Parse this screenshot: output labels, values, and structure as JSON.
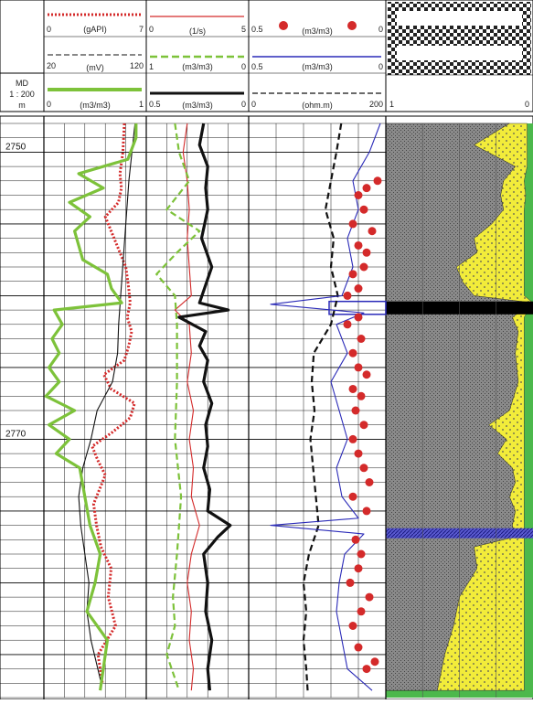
{
  "header": {
    "index": {
      "label_lines": [
        "MD",
        "1 : 200",
        "m"
      ]
    },
    "track1": {
      "gr": {
        "min": "0",
        "unit": "(gAPI)",
        "max": "7"
      },
      "sp": {
        "min": "20",
        "unit": "(mV)",
        "max": "120"
      },
      "phi": {
        "min": "0",
        "unit": "(m3/m3)",
        "max": "1"
      }
    },
    "track2": {
      "dt": {
        "min": "0",
        "unit": "(1/s)",
        "max": "5"
      },
      "nphi": {
        "min": "1",
        "unit": "(m3/m3)",
        "max": "0"
      },
      "rhob": {
        "min": "0.5",
        "unit": "(m3/m3)",
        "max": "0"
      }
    },
    "track3": {
      "core": {
        "min": "0.5",
        "unit": "(m3/m3)",
        "max": "0"
      },
      "phie": {
        "min": "0.5",
        "unit": "(m3/m3)",
        "max": "0"
      },
      "res": {
        "min": "0",
        "unit": "(ohm.m)",
        "max": "200"
      }
    },
    "track4": {
      "min": "1",
      "max": "0"
    }
  },
  "depth_labels": [
    "2750",
    "2770"
  ],
  "colors": {
    "gr": "#d42a2a",
    "sp": "#111111",
    "phi": "#7dc23a",
    "dt": "#d42a2a",
    "nphi": "#7dc23a",
    "rhob": "#111111",
    "core": "#d42a2a",
    "phie": "#2a2ab8",
    "res": "#111111",
    "shale": "#8a8a8a",
    "sand": "#f2ec3a",
    "water": "#4cb84c",
    "coal": "#000000"
  },
  "chart_data": {
    "type": "line",
    "depth_unit": "m",
    "depth_range": [
      2748,
      2788
    ],
    "depth_ticks": [
      2750,
      2770
    ],
    "tracks": [
      {
        "name": "track1",
        "series": [
          {
            "name": "(gAPI)",
            "xlim": [
              0,
              7
            ],
            "style": "dotted",
            "depth": [
              2748,
              2750,
              2751.5,
              2752.5,
              2753.5,
              2754.5,
              2756,
              2758,
              2759.5,
              2760.5,
              2761.5,
              2762.5,
              2763.5,
              2764.5,
              2765.5,
              2766.5,
              2767.5,
              2768.5,
              2769.5,
              2770.5,
              2771.5,
              2772.5,
              2773.5,
              2774.5,
              2776,
              2777.5,
              2779,
              2781,
              2783,
              2785,
              2787
            ],
            "values": [
              5.5,
              5.4,
              5.2,
              5.3,
              5.1,
              4.2,
              4.8,
              5.6,
              5.8,
              5.9,
              5.7,
              6.0,
              5.8,
              5.5,
              4.1,
              4.6,
              6.2,
              5.9,
              4.7,
              3.3,
              3.7,
              4.2,
              3.8,
              3.4,
              3.6,
              3.9,
              4.6,
              4.4,
              4.9,
              3.7,
              4.0
            ]
          },
          {
            "name": "(mV)",
            "xlim": [
              20,
              120
            ],
            "style": "solid",
            "depth": [
              2748,
              2752,
              2756,
              2760,
              2762,
              2764,
              2766,
              2768,
              2770,
              2772,
              2774,
              2776,
              2778,
              2780,
              2782,
              2784,
              2787
            ],
            "values": [
              109,
              103,
              99,
              95,
              93,
              92,
              87,
              72,
              66,
              58,
              54,
              56,
              60,
              64,
              62,
              66,
              76
            ]
          },
          {
            "name": "(m3/m3)",
            "xlim": [
              0,
              1
            ],
            "style": "thick",
            "depth": [
              2748,
              2749,
              2750.5,
              2751.5,
              2752.5,
              2753.5,
              2754.5,
              2755.5,
              2756.5,
              2757.5,
              2758.5,
              2759.5,
              2760.5,
              2761,
              2762,
              2763,
              2764,
              2765,
              2766,
              2767,
              2768,
              2769,
              2770,
              2771,
              2772,
              2774,
              2776,
              2778,
              2780,
              2782,
              2784,
              2786,
              2787.5
            ],
            "values": [
              0.9,
              0.9,
              0.82,
              0.34,
              0.58,
              0.25,
              0.45,
              0.3,
              0.34,
              0.38,
              0.62,
              0.66,
              0.76,
              0.1,
              0.18,
              0.08,
              0.15,
              0.05,
              0.15,
              0.02,
              0.3,
              0.05,
              0.25,
              0.12,
              0.35,
              0.4,
              0.45,
              0.55,
              0.5,
              0.42,
              0.62,
              0.58,
              0.55
            ]
          }
        ]
      },
      {
        "name": "track2",
        "series": [
          {
            "name": "(1/s)",
            "xlim": [
              0,
              5
            ],
            "style": "solid",
            "depth": [
              2748,
              2750,
              2752,
              2754,
              2756,
              2758,
              2760,
              2761,
              2762,
              2764,
              2766,
              2768,
              2770,
              2772,
              2774,
              2776,
              2778,
              2780,
              2782,
              2784,
              2786,
              2787.5
            ],
            "values": [
              2.0,
              1.8,
              2.0,
              2.1,
              2.0,
              2.1,
              2.2,
              1.4,
              2.1,
              2.2,
              2.0,
              2.3,
              2.1,
              2.3,
              2.2,
              2.6,
              2.2,
              2.0,
              2.2,
              2.1,
              2.3,
              2.2
            ]
          },
          {
            "name": "(m3/m3)",
            "xlim": [
              1,
              0
            ],
            "style": "dashed",
            "depth": [
              2748,
              2750,
              2752,
              2754,
              2755.5,
              2757,
              2758.5,
              2760,
              2762,
              2766,
              2770,
              2774,
              2778,
              2781,
              2783,
              2785,
              2787.5
            ],
            "values": [
              0.72,
              0.68,
              0.58,
              0.8,
              0.48,
              0.7,
              0.9,
              0.72,
              0.7,
              0.7,
              0.72,
              0.66,
              0.7,
              0.74,
              0.72,
              0.8,
              0.68
            ]
          },
          {
            "name": "(m3/m3)",
            "xlim": [
              0.5,
              0
            ],
            "style": "thick",
            "depth": [
              2748,
              2749.5,
              2751,
              2752.5,
              2754,
              2756,
              2758,
              2760.5,
              2761,
              2761.5,
              2762.5,
              2763.5,
              2764.5,
              2766,
              2767.5,
              2769,
              2770.5,
              2772,
              2773.5,
              2775,
              2776,
              2776.8,
              2778,
              2780,
              2782,
              2784,
              2786,
              2787.5
            ],
            "values": [
              0.22,
              0.24,
              0.2,
              0.21,
              0.2,
              0.23,
              0.18,
              0.24,
              0.1,
              0.34,
              0.21,
              0.24,
              0.2,
              0.22,
              0.18,
              0.21,
              0.2,
              0.22,
              0.19,
              0.2,
              0.09,
              0.15,
              0.22,
              0.2,
              0.21,
              0.18,
              0.2,
              0.19
            ]
          }
        ]
      },
      {
        "name": "track3",
        "series": [
          {
            "name": "(ohm.m)",
            "xlim": [
              0,
              200
            ],
            "style": "dashed",
            "depth": [
              2748,
              2750,
              2752,
              2754,
              2756,
              2758,
              2760,
              2762,
              2764,
              2766,
              2768,
              2770,
              2772,
              2774,
              2776,
              2778,
              2780,
              2782,
              2784,
              2786,
              2787.5
            ],
            "values": [
              135,
              128,
              120,
              112,
              124,
              120,
              130,
              120,
              95,
              92,
              96,
              90,
              94,
              98,
              102,
              88,
              80,
              84,
              80,
              84,
              86
            ]
          },
          {
            "name": "(m3/m3)",
            "xlim": [
              0.5,
              0
            ],
            "style": "solid",
            "depth": [
              2748,
              2750,
              2752,
              2754,
              2756,
              2758,
              2760,
              2760.6,
              2761.2,
              2762,
              2764,
              2766,
              2768,
              2770,
              2772,
              2774,
              2775.5,
              2776,
              2776.6,
              2778,
              2780,
              2782,
              2784,
              2786,
              2787.5
            ],
            "values": [
              0.02,
              0.06,
              0.12,
              0.1,
              0.14,
              0.12,
              0.16,
              0.42,
              0.08,
              0.18,
              0.14,
              0.2,
              0.17,
              0.14,
              0.18,
              0.16,
              0.1,
              0.42,
              0.08,
              0.15,
              0.17,
              0.18,
              0.16,
              0.14,
              0.05
            ]
          },
          {
            "name": "(m3/m3)",
            "xlim": [
              0.5,
              0
            ],
            "style": "markers",
            "depth": [
              2752,
              2752.5,
              2753,
              2754,
              2755,
              2755.5,
              2756.5,
              2757,
              2758,
              2758.5,
              2759.5,
              2760,
              2761.5,
              2762,
              2763,
              2764,
              2765,
              2765.5,
              2766.5,
              2767,
              2768,
              2769,
              2770,
              2771,
              2772,
              2773,
              2774,
              2775,
              2777,
              2778,
              2779,
              2780,
              2781,
              2782,
              2783,
              2784.5,
              2785.5,
              2786
            ],
            "values": [
              0.03,
              0.07,
              0.1,
              0.08,
              0.12,
              0.05,
              0.1,
              0.07,
              0.08,
              0.12,
              0.1,
              0.14,
              0.1,
              0.14,
              0.09,
              0.12,
              0.1,
              0.07,
              0.12,
              0.09,
              0.11,
              0.08,
              0.12,
              0.1,
              0.08,
              0.06,
              0.12,
              0.07,
              0.11,
              0.09,
              0.1,
              0.13,
              0.06,
              0.09,
              0.12,
              0.1,
              0.04,
              0.07
            ]
          }
        ]
      },
      {
        "name": "track4",
        "type": "area",
        "xlim": [
          1,
          0
        ],
        "components": [
          "shale",
          "sand",
          "water"
        ],
        "depth": [
          2748,
          2749.5,
          2751,
          2752,
          2753,
          2754,
          2755,
          2756,
          2757,
          2758,
          2759,
          2760,
          2760.5,
          2761.5,
          2762.5,
          2764,
          2766,
          2768,
          2769,
          2770,
          2771,
          2772,
          2773,
          2774,
          2775,
          2776,
          2776.8,
          2777.5,
          2779,
          2781,
          2783,
          2785,
          2787.5
        ],
        "shale": [
          0.84,
          0.6,
          0.88,
          0.8,
          0.78,
          0.8,
          0.72,
          0.6,
          0.62,
          0.48,
          0.52,
          0.6,
          1.0,
          0.86,
          0.9,
          0.88,
          0.9,
          0.84,
          0.7,
          0.82,
          0.76,
          0.86,
          0.88,
          0.84,
          0.88,
          0.86,
          0.88,
          0.6,
          0.62,
          0.5,
          0.46,
          0.4,
          0.35
        ],
        "sand": [
          0.12,
          0.36,
          0.08,
          0.14,
          0.17,
          0.14,
          0.22,
          0.34,
          0.32,
          0.46,
          0.42,
          0.34,
          0.0,
          0.08,
          0.04,
          0.06,
          0.04,
          0.1,
          0.24,
          0.12,
          0.18,
          0.08,
          0.06,
          0.1,
          0.06,
          0.08,
          0.06,
          0.34,
          0.32,
          0.44,
          0.48,
          0.54,
          0.59
        ],
        "intervals": [
          {
            "top": 2760.4,
            "base": 2761.3,
            "fill": "coal"
          },
          {
            "top": 2776.2,
            "base": 2776.9,
            "fill": "water"
          }
        ]
      }
    ]
  }
}
